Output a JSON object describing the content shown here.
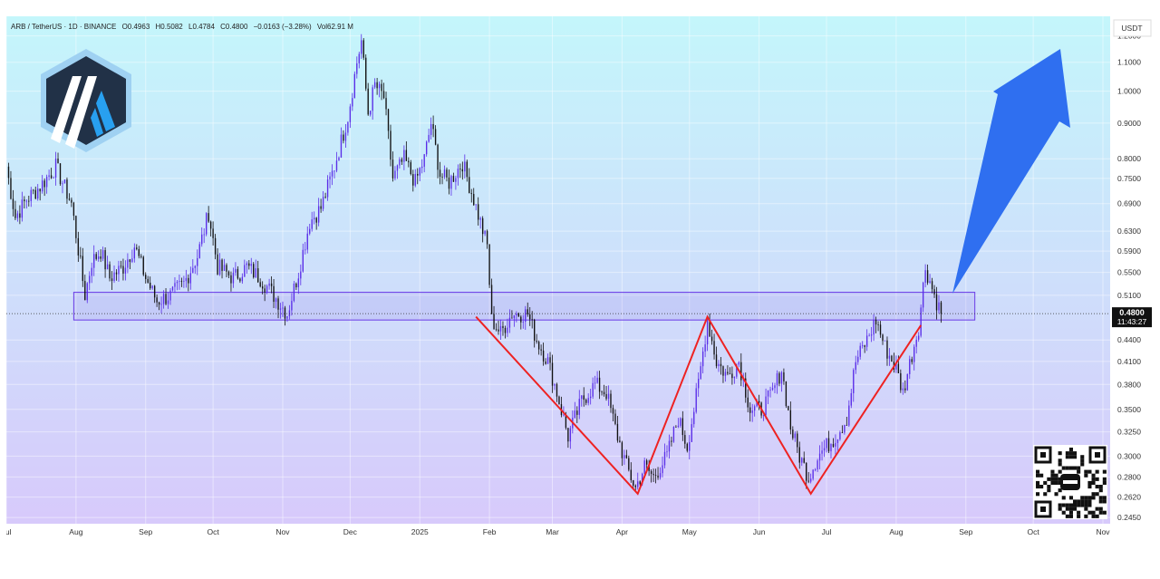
{
  "header": {
    "symbol": "ARB / TetherUS · 1D · BINANCE",
    "o_label": "O",
    "open": "0.4963",
    "h_label": "H",
    "high": "0.5082",
    "l_label": "L",
    "low": "0.4784",
    "c_label": "C",
    "close": "0.4800",
    "change": "−0.0163 (−3.28%)",
    "vol_label": "Vol",
    "volume": "62.91 M"
  },
  "currency": "USDT",
  "price_badge": {
    "value": "0.4800",
    "countdown": "11:43:27"
  },
  "colors": {
    "bg_top": "#c4f6fb",
    "bg_bottom": "#d8c8fb",
    "candle_up": "#5a2ee8",
    "candle_down": "#111111",
    "zone_stroke": "#6a3be6",
    "pattern_line": "#ee2222",
    "arrow": "#2f6ff0"
  },
  "chart_data": {
    "type": "candlestick",
    "y_scale": "log",
    "ylim": [
      0.24,
      1.28
    ],
    "y_ticks": [
      "1.2000",
      "1.1000",
      "1.0000",
      "0.9000",
      "0.8000",
      "0.7500",
      "0.6900",
      "0.6300",
      "0.5900",
      "0.5500",
      "0.5100",
      "0.4400",
      "0.4100",
      "0.3800",
      "0.3500",
      "0.3250",
      "0.3000",
      "0.2800",
      "0.2620",
      "0.2450"
    ],
    "x_ticks": [
      "Jul",
      "Aug",
      "Sep",
      "Oct",
      "Nov",
      "Dec",
      "2025",
      "Feb",
      "Mar",
      "Apr",
      "May",
      "Jun",
      "Jul",
      "Aug",
      "Sep",
      "Oct",
      "Nov"
    ],
    "x_range": [
      "2024-07-01",
      "2025-11-01"
    ],
    "x_tick_dates": [
      "2024-07-01",
      "2024-08-01",
      "2024-09-01",
      "2024-10-01",
      "2024-11-01",
      "2024-12-01",
      "2025-01-01",
      "2025-02-01",
      "2025-03-01",
      "2025-04-01",
      "2025-05-01",
      "2025-06-01",
      "2025-07-01",
      "2025-08-01",
      "2025-09-01",
      "2025-10-01",
      "2025-11-01"
    ],
    "close_path": [
      [
        "2024-07-01",
        0.78
      ],
      [
        "2024-07-05",
        0.66
      ],
      [
        "2024-07-10",
        0.7
      ],
      [
        "2024-07-16",
        0.73
      ],
      [
        "2024-07-23",
        0.78
      ],
      [
        "2024-07-30",
        0.69
      ],
      [
        "2024-08-05",
        0.51
      ],
      [
        "2024-08-08",
        0.57
      ],
      [
        "2024-08-12",
        0.59
      ],
      [
        "2024-08-16",
        0.54
      ],
      [
        "2024-08-22",
        0.56
      ],
      [
        "2024-08-27",
        0.6
      ],
      [
        "2024-09-01",
        0.54
      ],
      [
        "2024-09-06",
        0.5
      ],
      [
        "2024-09-12",
        0.51
      ],
      [
        "2024-09-18",
        0.53
      ],
      [
        "2024-09-24",
        0.58
      ],
      [
        "2024-09-29",
        0.67
      ],
      [
        "2024-10-03",
        0.56
      ],
      [
        "2024-10-10",
        0.54
      ],
      [
        "2024-10-16",
        0.56
      ],
      [
        "2024-10-22",
        0.54
      ],
      [
        "2024-10-28",
        0.51
      ],
      [
        "2024-11-03",
        0.48
      ],
      [
        "2024-11-08",
        0.55
      ],
      [
        "2024-11-13",
        0.65
      ],
      [
        "2024-11-18",
        0.68
      ],
      [
        "2024-11-24",
        0.78
      ],
      [
        "2024-11-30",
        0.92
      ],
      [
        "2024-12-04",
        1.1
      ],
      [
        "2024-12-06",
        1.18
      ],
      [
        "2024-12-09",
        0.93
      ],
      [
        "2024-12-12",
        1.02
      ],
      [
        "2024-12-16",
        0.98
      ],
      [
        "2024-12-20",
        0.75
      ],
      [
        "2024-12-25",
        0.8
      ],
      [
        "2024-12-30",
        0.74
      ],
      [
        "2025-01-03",
        0.8
      ],
      [
        "2025-01-06",
        0.9
      ],
      [
        "2025-01-10",
        0.76
      ],
      [
        "2025-01-14",
        0.74
      ],
      [
        "2025-01-20",
        0.79
      ],
      [
        "2025-01-25",
        0.7
      ],
      [
        "2025-01-31",
        0.6
      ],
      [
        "2025-02-02",
        0.47
      ],
      [
        "2025-02-06",
        0.45
      ],
      [
        "2025-02-11",
        0.48
      ],
      [
        "2025-02-18",
        0.48
      ],
      [
        "2025-02-22",
        0.44
      ],
      [
        "2025-02-27",
        0.41
      ],
      [
        "2025-03-03",
        0.37
      ],
      [
        "2025-03-08",
        0.32
      ],
      [
        "2025-03-14",
        0.36
      ],
      [
        "2025-03-20",
        0.38
      ],
      [
        "2025-03-25",
        0.37
      ],
      [
        "2025-03-30",
        0.32
      ],
      [
        "2025-04-03",
        0.29
      ],
      [
        "2025-04-07",
        0.27
      ],
      [
        "2025-04-11",
        0.29
      ],
      [
        "2025-04-15",
        0.28
      ],
      [
        "2025-04-21",
        0.3
      ],
      [
        "2025-04-26",
        0.34
      ],
      [
        "2025-04-30",
        0.31
      ],
      [
        "2025-05-05",
        0.38
      ],
      [
        "2025-05-09",
        0.47
      ],
      [
        "2025-05-13",
        0.41
      ],
      [
        "2025-05-18",
        0.39
      ],
      [
        "2025-05-23",
        0.41
      ],
      [
        "2025-05-28",
        0.35
      ],
      [
        "2025-06-02",
        0.35
      ],
      [
        "2025-06-07",
        0.37
      ],
      [
        "2025-06-11",
        0.4
      ],
      [
        "2025-06-15",
        0.33
      ],
      [
        "2025-06-19",
        0.3
      ],
      [
        "2025-06-23",
        0.28
      ],
      [
        "2025-06-27",
        0.3
      ],
      [
        "2025-07-01",
        0.31
      ],
      [
        "2025-07-05",
        0.32
      ],
      [
        "2025-07-10",
        0.34
      ],
      [
        "2025-07-14",
        0.41
      ],
      [
        "2025-07-19",
        0.44
      ],
      [
        "2025-07-23",
        0.47
      ],
      [
        "2025-07-27",
        0.43
      ],
      [
        "2025-08-01",
        0.4
      ],
      [
        "2025-08-04",
        0.37
      ],
      [
        "2025-08-08",
        0.42
      ],
      [
        "2025-08-11",
        0.46
      ],
      [
        "2025-08-14",
        0.56
      ],
      [
        "2025-08-18",
        0.51
      ],
      [
        "2025-08-21",
        0.48
      ]
    ],
    "resistance_zone": {
      "low": 0.47,
      "high": 0.515,
      "from": "2024-07-31",
      "to": "2025-09-05"
    },
    "pattern_lines": [
      [
        [
          "2025-01-26",
          0.475
        ],
        [
          "2025-04-08",
          0.265
        ],
        [
          "2025-05-09",
          0.475
        ],
        [
          "2025-06-24",
          0.265
        ],
        [
          "2025-08-12",
          0.462
        ]
      ]
    ]
  }
}
